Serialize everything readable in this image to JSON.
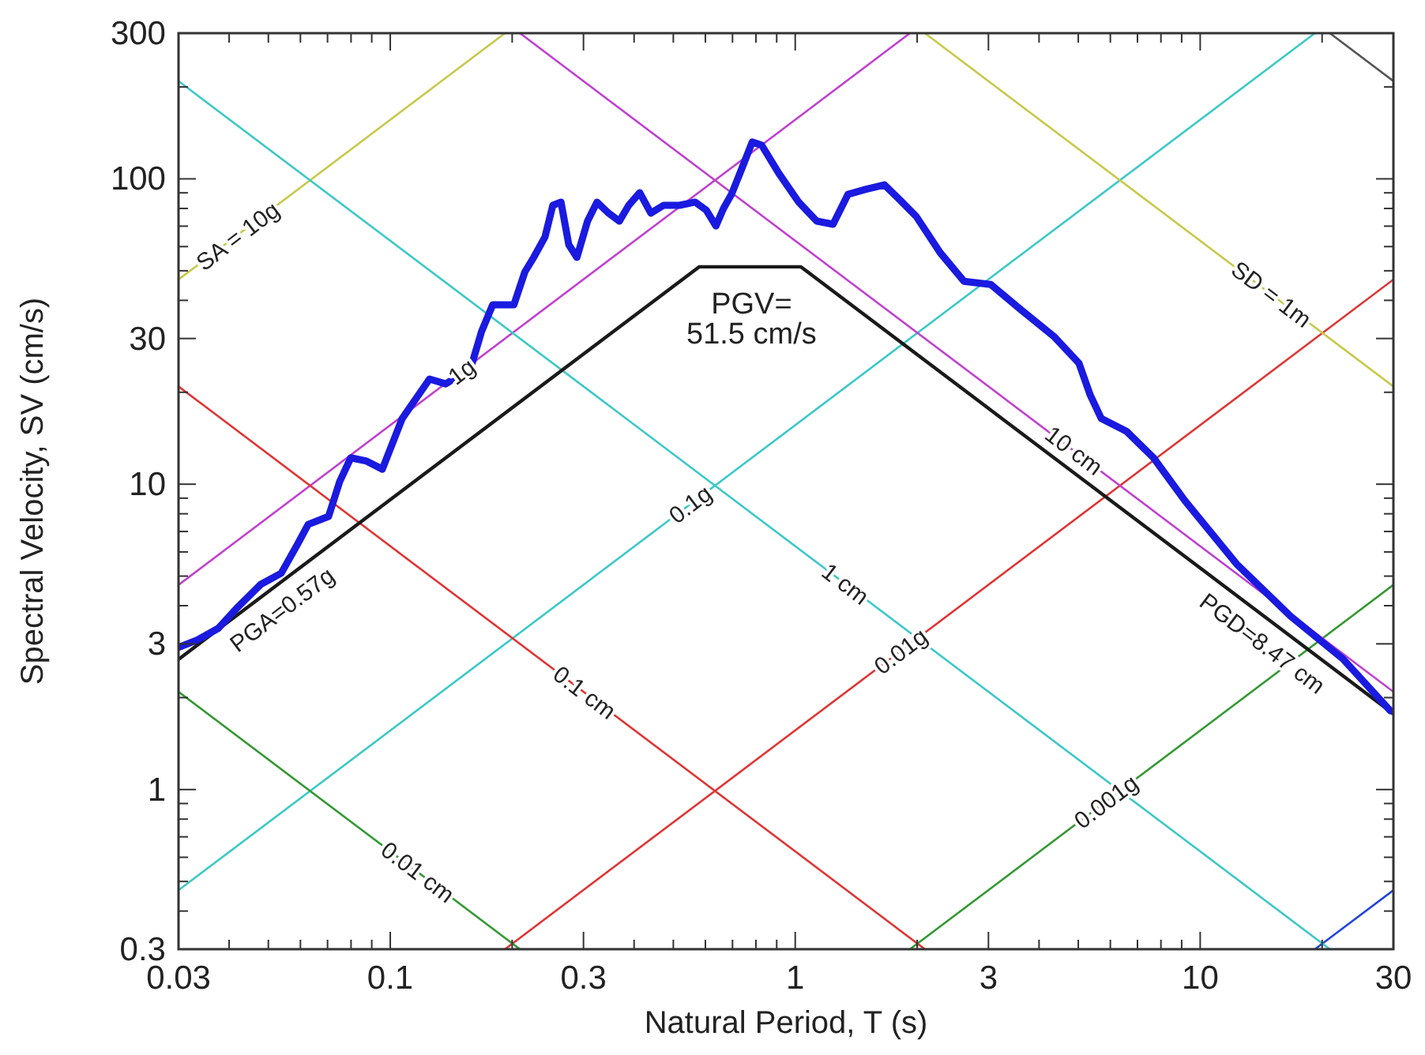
{
  "chart_data": {
    "type": "line",
    "xlabel": "Natural Period, T (s)",
    "ylabel": "Spectral Velocity, SV (cm/s)",
    "log": "xy",
    "grid": false,
    "marker": "none",
    "line_style": "solid",
    "xlim": [
      0.03,
      30
    ],
    "ylim": [
      0.3,
      300
    ],
    "xticks": [
      0.03,
      {
        "value": 0.04,
        "label": null
      },
      {
        "value": 0.05,
        "label": null
      },
      {
        "value": 0.06,
        "label": null
      },
      {
        "value": 0.07,
        "label": null
      },
      {
        "value": 0.08,
        "label": null
      },
      {
        "value": 0.09,
        "label": null
      },
      0.1,
      {
        "value": 0.2,
        "label": null
      },
      0.3,
      {
        "value": 0.4,
        "label": null
      },
      {
        "value": 0.5,
        "label": null
      },
      {
        "value": 0.6,
        "label": null
      },
      {
        "value": 0.7,
        "label": null
      },
      {
        "value": 0.8,
        "label": null
      },
      {
        "value": 0.9,
        "label": null
      },
      1,
      {
        "value": 2,
        "label": null
      },
      3,
      {
        "value": 4,
        "label": null
      },
      {
        "value": 5,
        "label": null
      },
      {
        "value": 6,
        "label": null
      },
      {
        "value": 7,
        "label": null
      },
      {
        "value": 8,
        "label": null
      },
      {
        "value": 9,
        "label": null
      },
      10,
      {
        "value": 20,
        "label": null
      },
      30
    ],
    "yticks": [
      0.3,
      {
        "value": 0.4,
        "label": null
      },
      {
        "value": 0.5,
        "label": null
      },
      {
        "value": 0.6,
        "label": null
      },
      {
        "value": 0.7,
        "label": null
      },
      {
        "value": 0.8,
        "label": null
      },
      {
        "value": 0.9,
        "label": null
      },
      1,
      {
        "value": 2,
        "label": null
      },
      3,
      {
        "value": 4,
        "label": null
      },
      {
        "value": 5,
        "label": null
      },
      {
        "value": 6,
        "label": null
      },
      {
        "value": 7,
        "label": null
      },
      {
        "value": 8,
        "label": null
      },
      {
        "value": 9,
        "label": null
      },
      10,
      {
        "value": 20,
        "label": null
      },
      30,
      {
        "value": 40,
        "label": null
      },
      {
        "value": 50,
        "label": null
      },
      {
        "value": 60,
        "label": null
      },
      {
        "value": 70,
        "label": null
      },
      {
        "value": 80,
        "label": null
      },
      {
        "value": 90,
        "label": null
      },
      100,
      {
        "value": 200,
        "label": null
      },
      300
    ],
    "series": [
      {
        "color": "#c8c84a",
        "x": [
          0.03,
          0.192
        ],
        "values": [
          46.8,
          300
        ]
      },
      {
        "color": "#c040d0",
        "x": [
          0.03,
          1.92
        ],
        "values": [
          4.68,
          300
        ]
      },
      {
        "color": "#3cc8c8",
        "x": [
          0.03,
          19.2
        ],
        "values": [
          0.468,
          300
        ]
      },
      {
        "color": "#e03434",
        "x": [
          0.192,
          30
        ],
        "values": [
          0.3,
          46.8
        ]
      },
      {
        "color": "#339933",
        "x": [
          1.92,
          30
        ],
        "values": [
          0.3,
          4.68
        ]
      },
      {
        "color": "#2244e0",
        "x": [
          19.2,
          30
        ],
        "values": [
          0.3,
          0.468
        ]
      },
      {
        "color": "#339933",
        "x": [
          0.03,
          0.209
        ],
        "values": [
          2.09,
          0.3
        ]
      },
      {
        "color": "#e03434",
        "x": [
          0.03,
          2.09
        ],
        "values": [
          20.9,
          0.3
        ]
      },
      {
        "color": "#3cc8c8",
        "x": [
          0.03,
          20.9
        ],
        "values": [
          209,
          0.3
        ]
      },
      {
        "color": "#c040d0",
        "x": [
          0.209,
          30
        ],
        "values": [
          300,
          2.09
        ]
      },
      {
        "color": "#c8c84a",
        "x": [
          2.09,
          30
        ],
        "values": [
          300,
          20.9
        ]
      },
      {
        "color": "#555555",
        "x": [
          20.9,
          30
        ],
        "values": [
          300,
          209
        ]
      },
      {
        "color": "#1a1a1a",
        "x": [
          0.03,
          0.579,
          1.033,
          30
        ],
        "values": [
          2.67,
          51.5,
          51.5,
          1.77
        ]
      },
      {
        "color": "#1a1ae0",
        "x": [
          0.03,
          0.0334,
          0.0376,
          0.0418,
          0.0479,
          0.0538,
          0.0589,
          0.0627,
          0.0704,
          0.075,
          0.0799,
          0.0874,
          0.0956,
          0.107,
          0.125,
          0.137,
          0.147,
          0.158,
          0.168,
          0.179,
          0.202,
          0.215,
          0.226,
          0.241,
          0.252,
          0.264,
          0.276,
          0.289,
          0.307,
          0.324,
          0.346,
          0.368,
          0.388,
          0.413,
          0.44,
          0.473,
          0.518,
          0.566,
          0.603,
          0.637,
          0.665,
          0.696,
          0.742,
          0.783,
          0.826,
          0.912,
          1.02,
          1.13,
          1.24,
          1.35,
          1.49,
          1.66,
          1.82,
          1.99,
          2.28,
          2.61,
          3.04,
          3.57,
          4.35,
          5.02,
          5.35,
          5.7,
          6.58,
          7.67,
          9.17,
          12.3,
          16.7,
          22.5,
          29.5
        ],
        "values": [
          2.92,
          3.09,
          3.37,
          3.93,
          4.7,
          5.11,
          6.33,
          7.38,
          7.84,
          10.2,
          12.2,
          11.9,
          11.2,
          16.4,
          22.1,
          21.3,
          22.6,
          24.0,
          31.6,
          38.7,
          38.7,
          49.6,
          55.3,
          64.5,
          81.9,
          83.9,
          60.8,
          55.3,
          72.7,
          83.9,
          77.2,
          72.7,
          81.9,
          90.1,
          77.2,
          81.9,
          81.9,
          83.9,
          79.0,
          70.1,
          80.0,
          89.0,
          110,
          132,
          129,
          104,
          83.9,
          72.7,
          71.0,
          89.0,
          92.3,
          95.6,
          84.9,
          75.3,
          57.3,
          46.2,
          45.1,
          37.7,
          30.5,
          24.9,
          19.6,
          16.4,
          14.9,
          12.2,
          8.83,
          5.48,
          3.7,
          2.68,
          1.81
        ]
      }
    ],
    "annotations": [
      {
        "text": "SA = 10g",
        "x": 0.042,
        "y": 65
      },
      {
        "text": "1g",
        "x": 0.15,
        "y": 23.4
      },
      {
        "text": "0.1g",
        "x": 0.55,
        "y": 8.6
      },
      {
        "text": "0.01g",
        "x": 1.82,
        "y": 2.84
      },
      {
        "text": "0.001g",
        "x": 5.85,
        "y": 0.913
      },
      {
        "text": "SD = 1m",
        "x": 15,
        "y": 41.9
      },
      {
        "text": "10 cm",
        "x": 4.88,
        "y": 12.9
      },
      {
        "text": "1 cm",
        "x": 1.33,
        "y": 4.72
      },
      {
        "text": "0.1 cm",
        "x": 0.302,
        "y": 2.08
      },
      {
        "text": "0.01 cm",
        "x": 0.117,
        "y": 0.537
      },
      {
        "text": "PGA=0.57g",
        "x": 0.05,
        "y": 4.45
      },
      {
        "text": "PGD=8.47 cm",
        "x": 15.4,
        "y": 3.45
      },
      {
        "text": "PGV=\n51.5 cm/s",
        "x": 0.78,
        "y": 51.5
      }
    ]
  }
}
